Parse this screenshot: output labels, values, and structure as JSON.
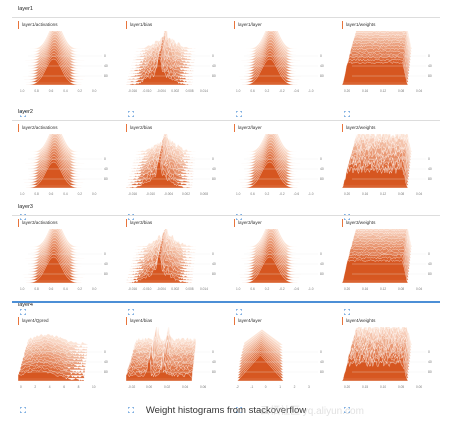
{
  "sections": [
    {
      "title": "layer1",
      "cards": [
        {
          "label": "layer1/activations",
          "shape": "bell",
          "ticks": [
            "1.0",
            "0.8",
            "0.6",
            "0.4",
            "0.2",
            "0.0"
          ]
        },
        {
          "label": "layer1/bias",
          "shape": "spike",
          "ticks": [
            "-0.016",
            "-0.010",
            "-0.004",
            "0.002",
            "0.008",
            "0.014"
          ]
        },
        {
          "label": "layer1/layer",
          "shape": "bell",
          "ticks": [
            "1.0",
            "0.6",
            "0.2",
            "-0.2",
            "-0.6",
            "-1.0"
          ]
        },
        {
          "label": "layer1/weights",
          "shape": "flat",
          "ticks": [
            "0.20",
            "0.16",
            "0.12",
            "0.08",
            "0.04"
          ]
        }
      ]
    },
    {
      "title": "layer2",
      "cards": [
        {
          "label": "layer2/activations",
          "shape": "bell",
          "ticks": [
            "1.0",
            "0.8",
            "0.6",
            "0.4",
            "0.2",
            "0.0"
          ]
        },
        {
          "label": "layer2/bias",
          "shape": "spike",
          "ticks": [
            "-0.016",
            "-0.010",
            "-0.004",
            "0.002",
            "0.008"
          ]
        },
        {
          "label": "layer2/layer",
          "shape": "bell",
          "ticks": [
            "1.0",
            "0.6",
            "0.2",
            "-0.2",
            "-0.6",
            "-1.0"
          ]
        },
        {
          "label": "layer2/weights",
          "shape": "rough",
          "ticks": [
            "0.20",
            "0.16",
            "0.12",
            "0.08",
            "0.04"
          ]
        }
      ]
    },
    {
      "title": "layer3",
      "cards": [
        {
          "label": "layer3/activations",
          "shape": "bell",
          "ticks": [
            "1.0",
            "0.8",
            "0.6",
            "0.4",
            "0.2",
            "0.0"
          ]
        },
        {
          "label": "layer3/bias",
          "shape": "spike",
          "ticks": [
            "-0.016",
            "-0.010",
            "-0.004",
            "0.002",
            "0.008",
            "0.014"
          ]
        },
        {
          "label": "layer3/layer",
          "shape": "bell",
          "ticks": [
            "1.0",
            "0.6",
            "0.2",
            "-0.2",
            "-0.6",
            "-1.0"
          ]
        },
        {
          "label": "layer3/weights",
          "shape": "flat",
          "ticks": [
            "0.20",
            "0.16",
            "0.12",
            "0.08",
            "0.04"
          ]
        }
      ]
    },
    {
      "title": "layer4",
      "cards": [
        {
          "label": "layer4/Qpred",
          "shape": "low",
          "ticks": [
            "0",
            "2",
            "4",
            "6",
            "8",
            "10"
          ]
        },
        {
          "label": "layer4/bias",
          "shape": "wild",
          "ticks": [
            "-0.02",
            "0.00",
            "0.02",
            "0.04",
            "0.06"
          ]
        },
        {
          "label": "layer4/layer",
          "shape": "tri",
          "ticks": [
            "-2",
            "-1",
            "0",
            "1",
            "2",
            "3"
          ]
        },
        {
          "label": "layer4/weights",
          "shape": "rough",
          "ticks": [
            "0.20",
            "0.15",
            "0.10",
            "0.05",
            "0.00"
          ]
        }
      ]
    }
  ],
  "y_ticks": [
    "0",
    "40",
    "80"
  ],
  "caption": "Weight histograms from stackoverflow",
  "watermark": "云栖社区 yq.aliyun.com",
  "colors": {
    "accent": "#e8743b",
    "active_line": "#4c8fd6",
    "section_line": "#dddddd"
  }
}
